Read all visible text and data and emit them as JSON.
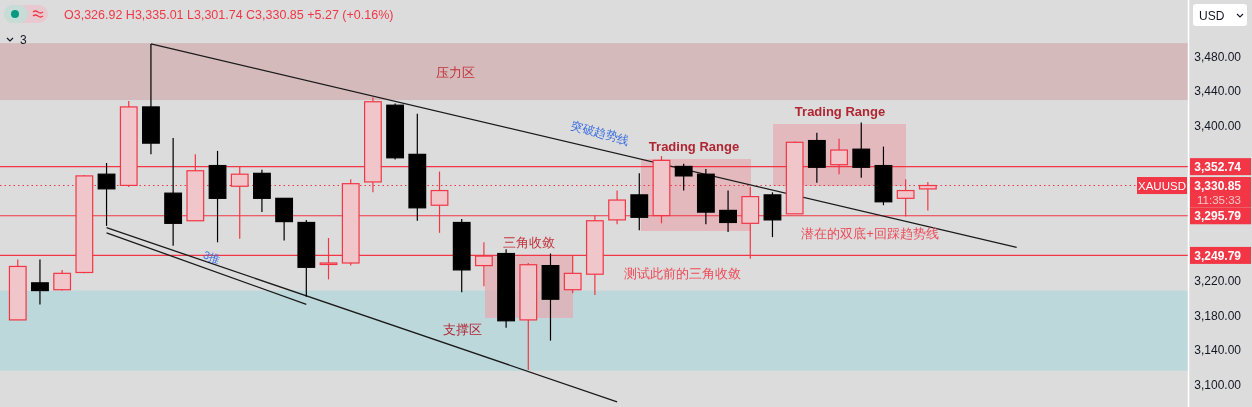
{
  "chart_data": {
    "type": "candlestick",
    "categories": [
      null,
      null,
      null,
      null,
      null,
      null,
      null,
      null,
      null,
      null,
      null,
      null,
      null,
      null,
      null,
      null,
      null,
      null,
      null,
      null,
      null,
      null,
      null,
      null,
      null,
      null,
      null,
      null,
      null,
      null,
      null,
      null,
      null,
      null,
      null,
      null,
      null,
      null,
      null,
      null,
      null,
      null,
      null,
      null,
      null,
      null,
      null,
      null,
      null,
      null,
      null,
      null,
      null
    ],
    "ohlc": [
      [
        3175,
        3245,
        3175,
        3237
      ],
      [
        3218,
        3245,
        3193,
        3209
      ],
      [
        3210,
        3233,
        3209,
        3229
      ],
      [
        3230,
        3343,
        3229,
        3342
      ],
      [
        3344,
        3357,
        3284,
        3327
      ],
      [
        3331,
        3429,
        3329,
        3422
      ],
      [
        3422,
        3495,
        3367,
        3380
      ],
      [
        3322,
        3386,
        3261,
        3287
      ],
      [
        3290,
        3367,
        3290,
        3348
      ],
      [
        3354,
        3371,
        3265,
        3316
      ],
      [
        3330,
        3353,
        3269,
        3344
      ],
      [
        3345,
        3349,
        3300,
        3316
      ],
      [
        3316,
        3316,
        3267,
        3289
      ],
      [
        3288,
        3291,
        3202,
        3236
      ],
      [
        3240,
        3270,
        3222,
        3241
      ],
      [
        3241,
        3338,
        3238,
        3333
      ],
      [
        3335,
        3433,
        3323,
        3428
      ],
      [
        3424,
        3426,
        3361,
        3363
      ],
      [
        3367,
        3414,
        3290,
        3305
      ],
      [
        3308,
        3347,
        3276,
        3325
      ],
      [
        3288,
        3292,
        3207,
        3233
      ],
      [
        3238,
        3265,
        3214,
        3249
      ],
      [
        3252,
        3257,
        3166,
        3174
      ],
      [
        3175,
        3241,
        3117,
        3239
      ],
      [
        3238,
        3252,
        3151,
        3199
      ],
      [
        3210,
        3250,
        3206,
        3229
      ],
      [
        3228,
        3296,
        3204,
        3290
      ],
      [
        3291,
        3325,
        3286,
        3314
      ],
      [
        3320,
        3345,
        3279,
        3294
      ],
      [
        3296,
        3365,
        3287,
        3360
      ],
      [
        3353,
        3356,
        3325,
        3342
      ],
      [
        3344,
        3350,
        3286,
        3300
      ],
      [
        3302,
        3325,
        3277,
        3288
      ],
      [
        3287,
        3329,
        3246,
        3318
      ],
      [
        3320,
        3323,
        3271,
        3291
      ],
      [
        3298,
        3382,
        3298,
        3381
      ],
      [
        3383,
        3392,
        3334,
        3352
      ],
      [
        3355,
        3385,
        3344,
        3372
      ],
      [
        3373,
        3404,
        3340,
        3352
      ],
      [
        3354,
        3376,
        3308,
        3312
      ],
      [
        3316,
        3338,
        3295,
        3325
      ],
      [
        3326.92,
        3335.01,
        3301.74,
        3330.85
      ],
      null,
      null,
      null,
      null,
      null,
      null,
      null,
      null,
      null,
      null,
      null
    ],
    "colors": [
      "#f23645",
      "#000000",
      "#f23645",
      "#f23645",
      "#000000",
      "#f23645",
      "#000000",
      "#000000",
      "#f23645",
      "#000000",
      "#f23645",
      "#000000",
      "#000000",
      "#000000",
      "#f23645",
      "#f23645",
      "#f23645",
      "#000000",
      "#000000",
      "#f23645",
      "#000000",
      "#f23645",
      "#000000",
      "#f23645",
      "#000000",
      "#f23645",
      "#f23645",
      "#f23645",
      "#000000",
      "#f23645",
      "#000000",
      "#000000",
      "#000000",
      "#f23645",
      "#000000",
      "#f23645",
      "#000000",
      "#f23645",
      "#000000",
      "#000000",
      "#f23645",
      "#f23645",
      null,
      null,
      null,
      null,
      null,
      null,
      null,
      null,
      null,
      null,
      null
    ],
    "series": [
      {
        "type": "line",
        "color": "#1a1a1a",
        "values": [
          null,
          null,
          null,
          null,
          null,
          null,
          3495,
          null,
          null,
          null,
          null,
          null,
          null,
          null,
          null,
          null,
          null,
          null,
          null,
          null,
          null,
          null,
          null,
          null,
          null,
          null,
          null,
          null,
          null,
          null,
          null,
          null,
          null,
          null,
          null,
          null,
          null,
          null,
          null,
          null,
          null,
          null,
          null,
          null,
          null,
          3259,
          null,
          null,
          null,
          null,
          null,
          null,
          null
        ]
      },
      {
        "type": "line",
        "color": "#1a1a1a",
        "values": [
          null,
          null,
          null,
          null,
          3282,
          null,
          null,
          null,
          null,
          null,
          null,
          null,
          null,
          null,
          null,
          null,
          null,
          null,
          null,
          null,
          null,
          null,
          null,
          null,
          null,
          null,
          null,
          3080,
          null,
          null,
          null,
          null,
          null,
          null,
          null,
          null,
          null,
          null,
          null,
          null,
          null,
          null,
          null,
          null,
          null,
          null,
          null,
          null,
          null,
          null,
          null,
          null,
          null
        ]
      },
      {
        "type": "line",
        "color": "#1a1a1a",
        "values": [
          null,
          null,
          null,
          null,
          3276,
          null,
          null,
          null,
          null,
          null,
          null,
          null,
          null,
          3193,
          null,
          null,
          null,
          null,
          null,
          null,
          null,
          null,
          null,
          null,
          null,
          null,
          null,
          null,
          null,
          null,
          null,
          null,
          null,
          null,
          null,
          null,
          null,
          null,
          null,
          null,
          null,
          null,
          null,
          null,
          null,
          null,
          null,
          null,
          null,
          null,
          null,
          null,
          null
        ]
      }
    ],
    "ylim": [
      3074,
      3546
    ],
    "yticks": [
      {
        "value": 3480,
        "label": "3,480.00"
      },
      {
        "value": 3440,
        "label": "3,440.00"
      },
      {
        "value": 3400,
        "label": "3,400.00"
      },
      {
        "value": 3220,
        "label": "3,220.00"
      },
      {
        "value": 3180,
        "label": "3,180.00"
      },
      {
        "value": 3140,
        "label": "3,140.00"
      },
      {
        "value": 3100,
        "label": "3,100.00"
      }
    ],
    "tick_labels": "y",
    "bands": [
      {
        "axis": "y",
        "from": 3430,
        "to": 3496,
        "color": "#d4b4b6"
      },
      {
        "axis": "y",
        "from": 3116,
        "to": 3209,
        "color": "#b7d7da"
      }
    ],
    "ref_lines": [
      {
        "axis": "y",
        "value": 3352.74,
        "label": "3,352.74",
        "color": "#f23645",
        "line_style": "solid"
      },
      {
        "axis": "y",
        "value": 3330.85,
        "label": "3,330.85",
        "color": "#f23645",
        "line_style": "dotted"
      },
      {
        "axis": "y",
        "value": 3295.79,
        "label": "3,295.79",
        "color": "#f23645",
        "line_style": "solid"
      },
      {
        "axis": "y",
        "value": 3249.79,
        "label": "3,249.79",
        "color": "#f23645",
        "line_style": "solid"
      }
    ],
    "annotations": [
      "O3,326.92 H3,335.01 L3,301.74 C3,330.85 +5.27 (+0.16%)",
      "3",
      "USD",
      "XAUUSD",
      "11:35:33",
      "压力区",
      "突破趋势线",
      "Trading Range",
      "Trading Range",
      "三角收敛",
      "测试此前的三角收敛",
      "潜在的双底+回踩趋势线",
      "支撑区",
      "3推"
    ]
  }
}
